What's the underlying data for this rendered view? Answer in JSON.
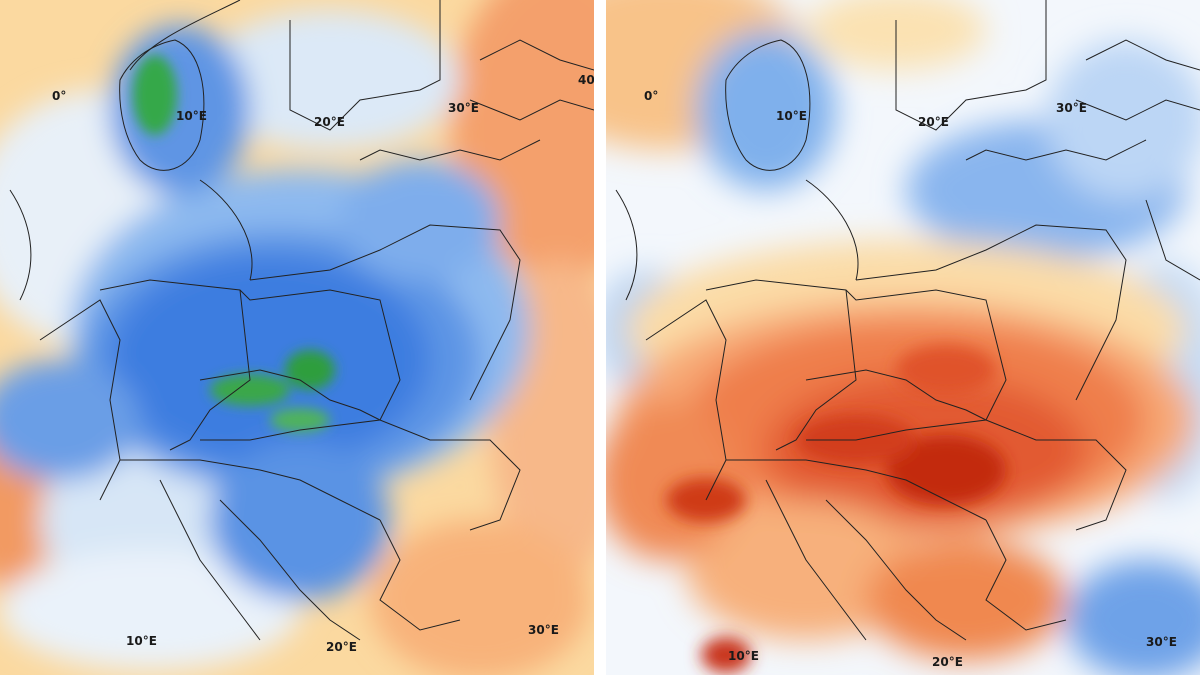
{
  "left_map": {
    "labels": {
      "lon_0": "0°",
      "lon_10_top": "10°E",
      "lon_20_top": "20°E",
      "lon_30_top": "30°E",
      "lon_40_top": "40",
      "lon_10_bottom": "10°E",
      "lon_20_bottom": "20°E",
      "lon_30_bottom": "30°E"
    }
  },
  "right_map": {
    "labels": {
      "lon_0": "0°",
      "lon_10_top": "10°E",
      "lon_20_top": "20°E",
      "lon_30_top": "30°E",
      "lon_10_bottom": "10°E",
      "lon_20_bottom": "20°E",
      "lon_30_bottom": "30°E"
    }
  },
  "colors": {
    "anomaly_cold_deep": "#2f6fd6",
    "anomaly_cold": "#5b93e6",
    "anomaly_cool": "#9cc3f2",
    "anomaly_neutral": "#f2f6fb",
    "anomaly_warm_light": "#fde3a8",
    "anomaly_warm": "#f7a873",
    "anomaly_hot": "#ea6a3d",
    "anomaly_very_hot": "#c62a12",
    "anomaly_extreme_cold": "#2ea043"
  }
}
